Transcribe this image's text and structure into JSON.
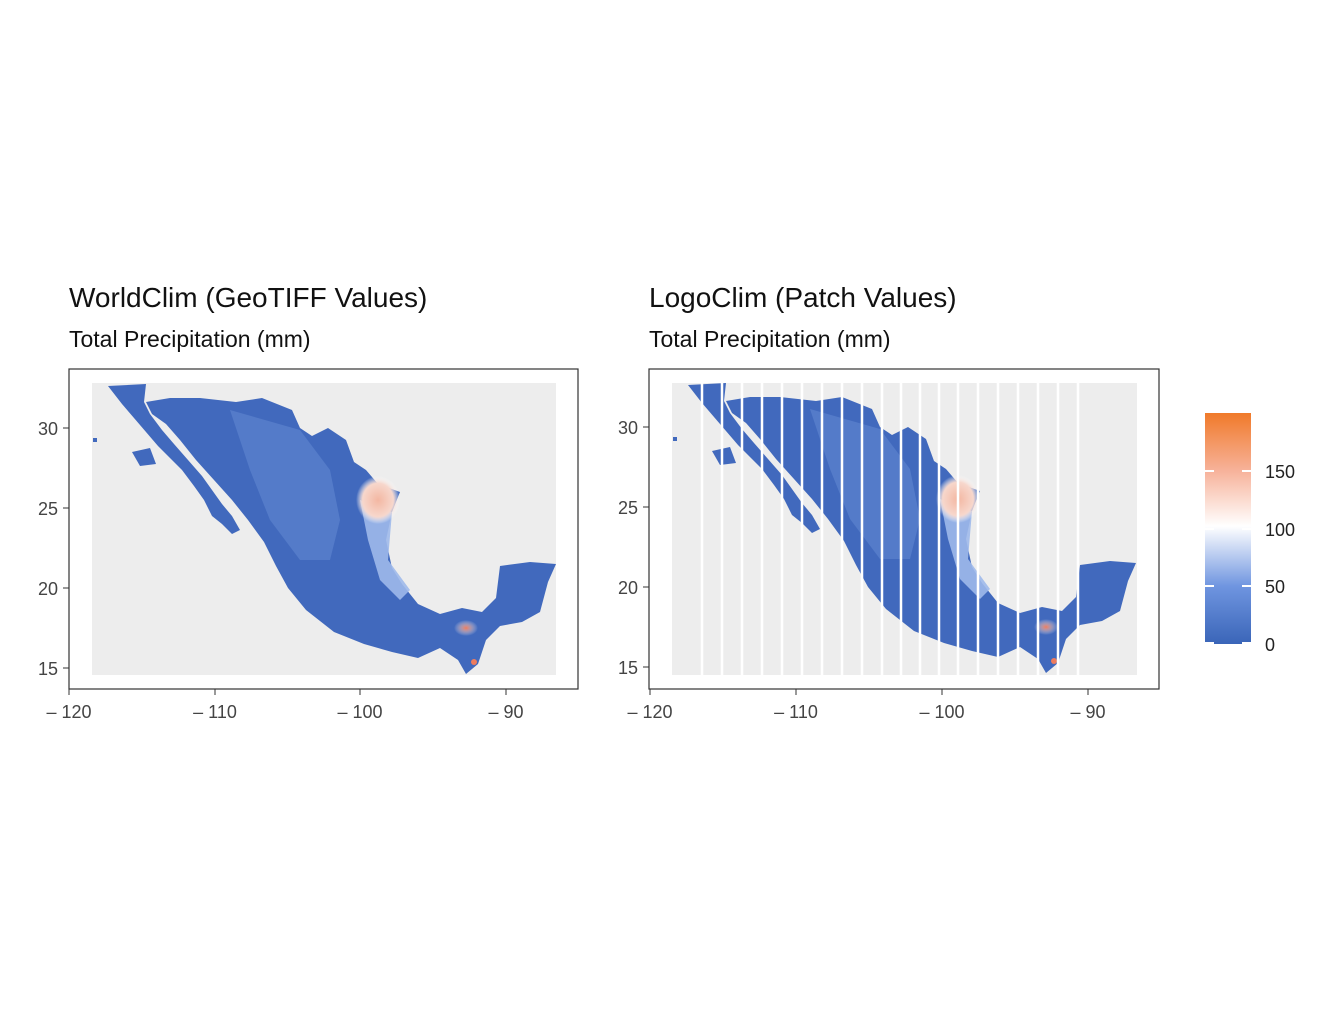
{
  "panels": [
    {
      "title": "WorldClim (GeoTIFF Values)",
      "subtitle": "Total Precipitation (mm)",
      "x_ticks": [
        "– 120",
        "– 110",
        "– 100",
        "– 90"
      ],
      "y_ticks": [
        "30",
        "25",
        "20",
        "15"
      ]
    },
    {
      "title": "LogoClim (Patch Values)",
      "subtitle": "Total Precipitation (mm)",
      "x_ticks": [
        "– 120",
        "– 110",
        "– 100",
        "– 90"
      ],
      "y_ticks": [
        "30",
        "25",
        "20",
        "15"
      ]
    }
  ],
  "legend": {
    "ticks": [
      "150",
      "100",
      "50",
      "0"
    ],
    "colors": {
      "low": "#3a65b8",
      "mid": "#ffffff",
      "high": "#f07a2a"
    }
  },
  "map_colors": {
    "panel_bg": "#ededed",
    "land": "#4169bd",
    "warm": "#f4c2b0"
  },
  "chart_data": {
    "type": "heatmap",
    "region": "Mexico",
    "xlim": [
      -120,
      -85
    ],
    "ylim": [
      14,
      33
    ],
    "legend_range": [
      0,
      195
    ]
  }
}
